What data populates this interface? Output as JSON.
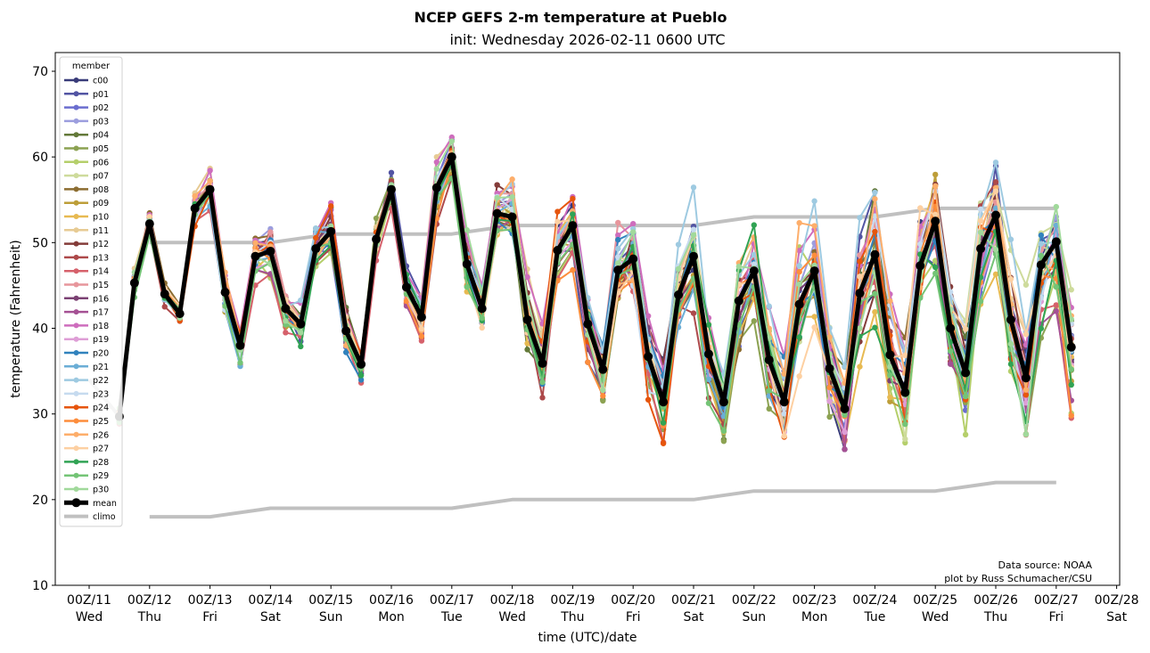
{
  "chart_data": {
    "type": "line",
    "title": "NCEP GEFS 2-m temperature at Pueblo",
    "subtitle": "init: Wednesday 2026-02-11 0600 UTC",
    "xlabel": "time (UTC)/date",
    "ylabel": "temperature (Fahrenheit)",
    "ylim": [
      10,
      72
    ],
    "yticks": [
      10,
      20,
      30,
      40,
      50,
      60,
      70
    ],
    "xlim_hours_from_00Z11": [
      -9,
      406
    ],
    "xticks": [
      {
        "hour": 0,
        "label1": "00Z/11",
        "label2": "Wed"
      },
      {
        "hour": 24,
        "label1": "00Z/12",
        "label2": "Thu"
      },
      {
        "hour": 48,
        "label1": "00Z/13",
        "label2": "Fri"
      },
      {
        "hour": 72,
        "label1": "00Z/14",
        "label2": "Sat"
      },
      {
        "hour": 96,
        "label1": "00Z/15",
        "label2": "Sun"
      },
      {
        "hour": 120,
        "label1": "00Z/16",
        "label2": "Mon"
      },
      {
        "hour": 144,
        "label1": "00Z/17",
        "label2": "Tue"
      },
      {
        "hour": 168,
        "label1": "00Z/18",
        "label2": "Wed"
      },
      {
        "hour": 192,
        "label1": "00Z/19",
        "label2": "Thu"
      },
      {
        "hour": 216,
        "label1": "00Z/20",
        "label2": "Fri"
      },
      {
        "hour": 240,
        "label1": "00Z/21",
        "label2": "Sat"
      },
      {
        "hour": 264,
        "label1": "00Z/22",
        "label2": "Sun"
      },
      {
        "hour": 288,
        "label1": "00Z/23",
        "label2": "Mon"
      },
      {
        "hour": 312,
        "label1": "00Z/24",
        "label2": "Tue"
      },
      {
        "hour": 336,
        "label1": "00Z/25",
        "label2": "Wed"
      },
      {
        "hour": 360,
        "label1": "00Z/26",
        "label2": "Thu"
      },
      {
        "hour": 384,
        "label1": "00Z/27",
        "label2": "Fri"
      },
      {
        "hour": 408,
        "label1": "00Z/28",
        "label2": "Sat"
      }
    ],
    "time_start_hour": 12,
    "time_step_hours": 6,
    "mean": [
      29.7,
      45.3,
      52.2,
      44.0,
      41.7,
      54.0,
      56.2,
      44.2,
      38.0,
      48.4,
      49.0,
      42.3,
      40.5,
      49.3,
      51.3,
      39.7,
      35.8,
      50.4,
      56.2,
      44.8,
      41.3,
      56.4,
      60.0,
      47.5,
      42.3,
      53.4,
      53.0,
      41.0,
      35.9,
      49.1,
      52.0,
      40.5,
      35.2,
      46.8,
      48.1,
      36.7,
      31.4,
      43.9,
      48.4,
      37.0,
      31.4,
      43.2,
      46.7,
      36.3,
      31.4,
      42.8,
      46.7,
      35.3,
      30.6,
      44.1,
      48.6,
      36.9,
      32.5,
      47.3,
      52.5,
      40.0,
      34.8,
      49.3,
      53.2,
      41.0,
      34.2,
      47.4,
      50.1,
      37.8
    ],
    "spread": [
      1.5,
      2.0,
      2.0,
      1.5,
      1.5,
      2.5,
      2.5,
      3.0,
      2.5,
      3.5,
      4.0,
      3.0,
      3.5,
      3.5,
      3.5,
      3.0,
      2.5,
      3.0,
      2.5,
      3.0,
      3.5,
      4.0,
      3.0,
      4.0,
      3.5,
      4.0,
      5.0,
      5.0,
      5.0,
      5.5,
      6.0,
      5.0,
      5.0,
      6.0,
      6.5,
      6.0,
      6.0,
      7.0,
      7.0,
      7.0,
      7.0,
      8.0,
      8.0,
      7.5,
      7.0,
      8.5,
      8.5,
      8.0,
      7.0,
      9.0,
      9.0,
      8.5,
      7.5,
      9.0,
      9.0,
      9.0,
      8.0,
      9.0,
      9.0,
      9.0,
      8.5,
      9.0,
      9.0,
      9.0
    ],
    "climo": {
      "start_segment": {
        "hours": [
          0,
          12
        ],
        "values": [
          34,
          29.7
        ]
      },
      "high": {
        "hours": [
          24,
          48,
          72,
          96,
          120,
          144,
          168,
          192,
          216,
          240,
          264,
          288,
          312,
          336,
          360,
          384
        ],
        "values": [
          50,
          50,
          50,
          51,
          51,
          51,
          52,
          52,
          52,
          52,
          53,
          53,
          53,
          54,
          54,
          54
        ]
      },
      "low": {
        "hours": [
          24,
          48,
          72,
          96,
          120,
          144,
          168,
          192,
          216,
          240,
          264,
          288,
          312,
          336,
          360,
          384
        ],
        "values": [
          18,
          18,
          19,
          19,
          19,
          19,
          20,
          20,
          20,
          20,
          21,
          21,
          21,
          21,
          22,
          22
        ]
      },
      "color": "#c0c0c0"
    },
    "mean_color": "#000000",
    "legend": {
      "title": "member",
      "placement": "upper-left",
      "entries": [
        {
          "name": "c00",
          "color": "#393b79"
        },
        {
          "name": "p01",
          "color": "#5254a3"
        },
        {
          "name": "p02",
          "color": "#6b6ecf"
        },
        {
          "name": "p03",
          "color": "#9c9ede"
        },
        {
          "name": "p04",
          "color": "#637939"
        },
        {
          "name": "p05",
          "color": "#8ca252"
        },
        {
          "name": "p06",
          "color": "#b5cf6b"
        },
        {
          "name": "p07",
          "color": "#cedb9c"
        },
        {
          "name": "p08",
          "color": "#8c6d31"
        },
        {
          "name": "p09",
          "color": "#bd9e39"
        },
        {
          "name": "p10",
          "color": "#e7ba52"
        },
        {
          "name": "p11",
          "color": "#e7cb94"
        },
        {
          "name": "p12",
          "color": "#843c39"
        },
        {
          "name": "p13",
          "color": "#ad494a"
        },
        {
          "name": "p14",
          "color": "#d6616b"
        },
        {
          "name": "p15",
          "color": "#e7969c"
        },
        {
          "name": "p16",
          "color": "#7b4173"
        },
        {
          "name": "p17",
          "color": "#a55194"
        },
        {
          "name": "p18",
          "color": "#ce6dbd"
        },
        {
          "name": "p19",
          "color": "#de9ed6"
        },
        {
          "name": "p20",
          "color": "#3182bd"
        },
        {
          "name": "p21",
          "color": "#6baed6"
        },
        {
          "name": "p22",
          "color": "#9ecae1"
        },
        {
          "name": "p23",
          "color": "#c6dbef"
        },
        {
          "name": "p24",
          "color": "#e6550d"
        },
        {
          "name": "p25",
          "color": "#fd8d3c"
        },
        {
          "name": "p26",
          "color": "#fdae6b"
        },
        {
          "name": "p27",
          "color": "#fdd0a2"
        },
        {
          "name": "p28",
          "color": "#31a354"
        },
        {
          "name": "p29",
          "color": "#74c476"
        },
        {
          "name": "p30",
          "color": "#a1d99b"
        },
        {
          "name": "mean",
          "color": "#000000"
        },
        {
          "name": "climo",
          "color": "#c0c0c0"
        }
      ]
    }
  },
  "annotations": {
    "source": "Data source: NOAA",
    "credit": "plot by Russ Schumacher/CSU"
  }
}
